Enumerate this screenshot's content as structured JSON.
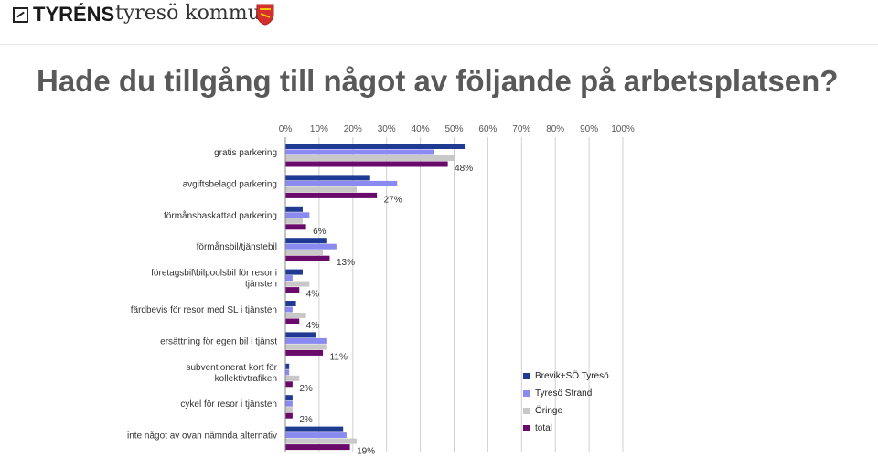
{
  "header": {
    "brand1": "TYRÉNS",
    "brand2": "tyresö kommun",
    "brand_color": "#d32f2f"
  },
  "title": "Hade du tillgång till något av följande på arbetsplatsen?",
  "chart_data": {
    "type": "bar",
    "orientation": "horizontal",
    "x_ticks": [
      "0%",
      "10%",
      "20%",
      "30%",
      "40%",
      "50%",
      "60%",
      "70%",
      "80%",
      "90%",
      "100%"
    ],
    "xlim": [
      0,
      100
    ],
    "x_axis_position": "top",
    "grid": true,
    "legend_position": "right-bottom",
    "categories": [
      "gratis parkering",
      "avgiftsbelagd parkering",
      "förmånsbaskattad parkering",
      "förmånsbil/tjänstebil",
      "företagsbil\\bilpoolsbil för resor i tjänsten",
      "färdbevis för resor med SL i tjänsten",
      "ersättning för egen bil i tjänst",
      "subventionerat kort för kollektivtrafiken",
      "cykel för resor i tjänsten",
      "inte något av ovan nämnda alternativ"
    ],
    "series": [
      {
        "name": "Brevik+SÖ Tyresö",
        "color": "#1f3a93",
        "values": [
          53,
          25,
          5,
          12,
          5,
          3,
          9,
          1,
          2,
          17
        ]
      },
      {
        "name": "Tyresö Strand",
        "color": "#8a8af0",
        "values": [
          44,
          33,
          7,
          15,
          2,
          2,
          12,
          1,
          2,
          18
        ]
      },
      {
        "name": "Öringe",
        "color": "#c8c8c8",
        "values": [
          50,
          21,
          5,
          11,
          7,
          6,
          12,
          4,
          2,
          21
        ]
      },
      {
        "name": "total",
        "color": "#6a0a6a",
        "values": [
          48,
          27,
          6,
          13,
          4,
          4,
          11,
          2,
          2,
          19
        ]
      }
    ],
    "data_labels": [
      "48%",
      "27%",
      "6%",
      "13%",
      "4%",
      "4%",
      "11%",
      "2%",
      "2%",
      "19%"
    ]
  }
}
